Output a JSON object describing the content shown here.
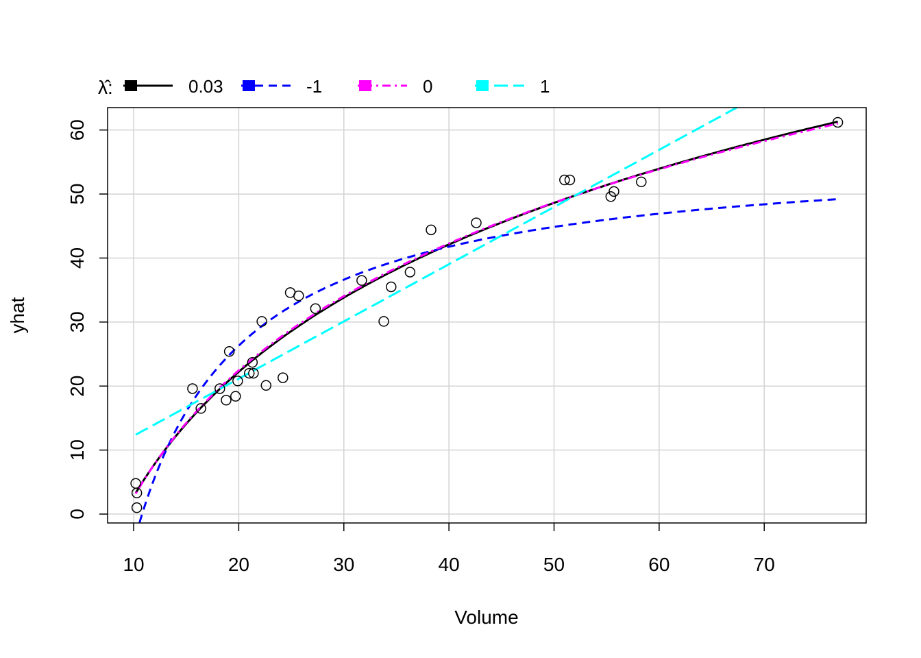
{
  "chart_data": {
    "type": "scatter",
    "title": "",
    "xlabel": "Volume",
    "ylabel": "yhat",
    "xlim": [
      7.52,
      79.7
    ],
    "ylim": [
      -1.39,
      63.5
    ],
    "xticks": [
      10,
      20,
      30,
      40,
      50,
      60,
      70
    ],
    "yticks": [
      0,
      10,
      20,
      30,
      40,
      50,
      60
    ],
    "grid": true,
    "legend": {
      "title": "λ̂:",
      "placement": "top",
      "entries": [
        {
          "label": "0.03",
          "color": "#000000",
          "dash": "solid"
        },
        {
          "label": "-1",
          "color": "#0000FF",
          "dash": "dashed"
        },
        {
          "label": "0",
          "color": "#FF00FF",
          "dash": "dotdash"
        },
        {
          "label": "1",
          "color": "#00FFFF",
          "dash": "longdash"
        }
      ]
    },
    "points": {
      "x": [
        10.2,
        10.3,
        10.3,
        15.6,
        16.4,
        18.2,
        18.8,
        19.1,
        19.7,
        19.9,
        21.0,
        21.3,
        21.4,
        22.2,
        22.6,
        24.2,
        24.9,
        25.7,
        27.3,
        31.7,
        33.8,
        34.5,
        36.3,
        38.3,
        42.6,
        51.0,
        51.5,
        55.4,
        55.7,
        58.3,
        77.0
      ],
      "y": [
        4.8,
        3.3,
        1.0,
        19.6,
        16.5,
        19.6,
        17.8,
        25.4,
        18.4,
        20.8,
        22.0,
        23.7,
        22.0,
        30.1,
        20.1,
        21.3,
        34.6,
        34.1,
        32.1,
        36.5,
        30.1,
        35.5,
        37.8,
        44.4,
        45.5,
        52.2,
        52.2,
        49.6,
        50.4,
        51.9,
        61.2
      ]
    },
    "series": [
      {
        "name": "0.03",
        "lambda": 0.03,
        "color": "#000000",
        "from": 10.2,
        "to": 77,
        "y_at_from": 3.3,
        "y_at_to": 61.3
      },
      {
        "name": "-1",
        "lambda": -1,
        "color": "#0000FF",
        "from": 10.2,
        "to": 77,
        "y_at_from": -3.4,
        "y_at_to": 49.2
      },
      {
        "name": "0",
        "lambda": 0,
        "color": "#FF00FF",
        "from": 10.2,
        "to": 77,
        "y_at_from": 3.2,
        "y_at_to": 61.0
      },
      {
        "name": "1",
        "lambda": 1,
        "color": "#00FFFF",
        "from": 10.2,
        "to": 77,
        "y_at_from": 12.4,
        "y_at_to": 72.1
      }
    ]
  }
}
